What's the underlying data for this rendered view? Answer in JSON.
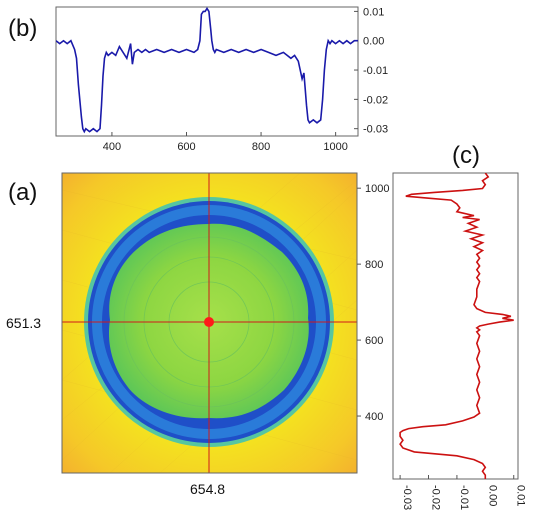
{
  "panels": {
    "b": {
      "label": "(b)"
    },
    "a": {
      "label": "(a)",
      "center_y_label": "651.3",
      "center_x_label": "654.8"
    },
    "c": {
      "label": "(c)"
    }
  },
  "chart_data": [
    {
      "id": "b",
      "type": "line",
      "title": "",
      "xlabel": "",
      "ylabel": "",
      "xlim": [
        250,
        1060
      ],
      "ylim": [
        -0.0325,
        0.0115
      ],
      "xticks": [
        "400",
        "600",
        "800",
        "1000"
      ],
      "yticks": [
        "0.01",
        "0.00",
        "-0.01",
        "-0.02",
        "-0.03"
      ],
      "color": "#1a1aaa",
      "series": [
        {
          "x": [
            250,
            260,
            270,
            280,
            290,
            300,
            305,
            310,
            318,
            322,
            326,
            330,
            340,
            350,
            360,
            368,
            372,
            376,
            380,
            385,
            390,
            400,
            410,
            420,
            430,
            440,
            450,
            455,
            460,
            470,
            480,
            490,
            500,
            520,
            540,
            560,
            580,
            600,
            620,
            630,
            636,
            640,
            645,
            650,
            655,
            660,
            665,
            668,
            672,
            676,
            680,
            700,
            720,
            740,
            760,
            780,
            800,
            820,
            840,
            860,
            870,
            880,
            890,
            900,
            905,
            910,
            915,
            918,
            922,
            926,
            930,
            940,
            950,
            960,
            965,
            970,
            975,
            980,
            985,
            990,
            1000,
            1010,
            1020,
            1030,
            1040,
            1050,
            1060
          ],
          "y": [
            0.0,
            -0.001,
            0.0,
            -0.001,
            0.0,
            -0.003,
            -0.006,
            -0.015,
            -0.026,
            -0.03,
            -0.031,
            -0.03,
            -0.031,
            -0.03,
            -0.031,
            -0.03,
            -0.022,
            -0.012,
            -0.006,
            -0.004,
            -0.005,
            -0.004,
            -0.005,
            -0.002,
            -0.004,
            -0.006,
            -0.001,
            -0.008,
            -0.004,
            -0.003,
            -0.004,
            -0.003,
            -0.004,
            -0.003,
            -0.004,
            -0.003,
            -0.004,
            -0.003,
            -0.004,
            -0.003,
            0.0,
            0.009,
            0.01,
            0.01,
            0.011,
            0.01,
            0.004,
            0.0,
            -0.003,
            -0.004,
            -0.003,
            -0.004,
            -0.003,
            -0.004,
            -0.003,
            -0.004,
            -0.003,
            -0.004,
            -0.005,
            -0.004,
            -0.005,
            -0.006,
            -0.005,
            -0.007,
            -0.01,
            -0.013,
            -0.011,
            -0.016,
            -0.022,
            -0.027,
            -0.028,
            -0.027,
            -0.028,
            -0.027,
            -0.02,
            -0.01,
            -0.003,
            0.0,
            -0.001,
            0.0,
            -0.001,
            0.0,
            -0.001,
            0.0,
            -0.001,
            0.0,
            0.0
          ]
        }
      ]
    },
    {
      "id": "c",
      "type": "line",
      "title": "",
      "xlabel": "",
      "ylabel": "",
      "xlim": [
        -0.0325,
        0.0115
      ],
      "ylim": [
        250,
        1040
      ],
      "xticks": [
        "-0.03",
        "-0.02",
        "-0.01",
        "0.00",
        "0.01"
      ],
      "yticks": [
        "400",
        "600",
        "800",
        "1000"
      ],
      "color": "#cc1111",
      "series": [
        {
          "y": [
            1040,
            1030,
            1020,
            1010,
            1000,
            995,
            990,
            985,
            980,
            975,
            970,
            960,
            950,
            940,
            930,
            925,
            920,
            910,
            900,
            890,
            880,
            870,
            860,
            850,
            840,
            830,
            820,
            810,
            800,
            790,
            780,
            770,
            760,
            740,
            720,
            700,
            690,
            680,
            675,
            670,
            665,
            660,
            655,
            650,
            645,
            640,
            635,
            630,
            620,
            600,
            580,
            560,
            540,
            520,
            500,
            480,
            460,
            440,
            420,
            410,
            400,
            390,
            385,
            380,
            375,
            370,
            360,
            350,
            340,
            330,
            320,
            310,
            300,
            290,
            280,
            270,
            260,
            250
          ],
          "x": [
            0.0,
            0.001,
            -0.001,
            0.0,
            -0.001,
            -0.008,
            -0.018,
            -0.026,
            -0.028,
            -0.02,
            -0.012,
            -0.01,
            -0.009,
            -0.01,
            -0.004,
            -0.008,
            -0.002,
            -0.006,
            -0.003,
            -0.007,
            -0.001,
            -0.005,
            -0.001,
            -0.004,
            -0.001,
            -0.003,
            -0.002,
            -0.003,
            -0.002,
            -0.003,
            -0.002,
            -0.003,
            -0.002,
            -0.003,
            -0.003,
            -0.004,
            -0.003,
            0.0,
            0.006,
            0.009,
            0.006,
            0.01,
            0.005,
            0.001,
            -0.002,
            -0.003,
            -0.002,
            -0.003,
            -0.002,
            -0.003,
            -0.002,
            -0.003,
            -0.002,
            -0.003,
            -0.002,
            -0.003,
            -0.002,
            -0.003,
            -0.002,
            -0.004,
            -0.008,
            -0.014,
            -0.022,
            -0.027,
            -0.029,
            -0.03,
            -0.03,
            -0.029,
            -0.03,
            -0.029,
            -0.025,
            -0.01,
            -0.004,
            -0.001,
            0.0,
            -0.001,
            0.0,
            0.0
          ]
        }
      ]
    },
    {
      "id": "a",
      "type": "heatmap",
      "title": "",
      "xlabel": "",
      "ylabel": "",
      "ylim": [
        250,
        1040
      ],
      "yticks": [
        "400",
        "600",
        "800",
        "1000"
      ],
      "crosshair": {
        "x": 654.8,
        "y": 651.3
      },
      "description_colors": {
        "background": "#f2e600",
        "ring": "#2a5fd4",
        "center": "#8fd640",
        "marker": "#ff1a1a"
      }
    }
  ]
}
